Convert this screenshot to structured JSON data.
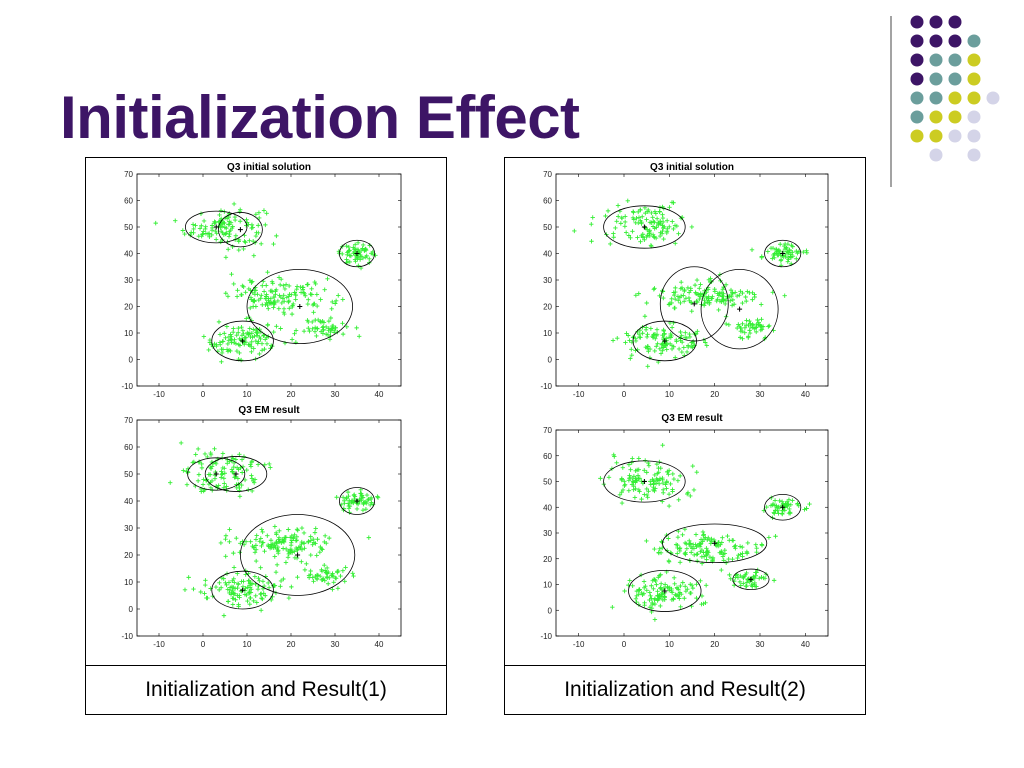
{
  "slide": {
    "title": "Initialization Effect"
  },
  "colors": {
    "title": "#3d1566",
    "points": "#33ee33",
    "deco_purple": "#3d1566",
    "deco_teal": "#6b9e9c",
    "deco_yellow": "#cccc22",
    "deco_lavender": "#d4d4e8"
  },
  "deco_dots": [
    [
      "purple",
      "purple",
      "purple",
      null,
      null
    ],
    [
      "purple",
      "purple",
      "purple",
      "teal",
      null
    ],
    [
      "purple",
      "teal",
      "teal",
      "yellow",
      null
    ],
    [
      "purple",
      "teal",
      "teal",
      "yellow",
      null
    ],
    [
      "teal",
      "teal",
      "yellow",
      "yellow",
      "lavender"
    ],
    [
      "teal",
      "yellow",
      "yellow",
      "lavender",
      null
    ],
    [
      "yellow",
      "yellow",
      "lavender",
      "lavender",
      null
    ],
    [
      null,
      "lavender",
      null,
      "lavender",
      null
    ]
  ],
  "panels": [
    {
      "caption": "Initialization and Result(1)",
      "top_plot_title": "Q3 initial solution",
      "bottom_plot_title": "Q3 EM result"
    },
    {
      "caption": "Initialization and Result(2)",
      "top_plot_title": "Q3 initial solution",
      "bottom_plot_title": "Q3 EM result"
    }
  ],
  "chart_data": [
    {
      "panel": 0,
      "plot": "top",
      "type": "scatter",
      "title": "Q3 initial solution",
      "xlim": [
        -15,
        45
      ],
      "ylim": [
        -10,
        70
      ],
      "xticks": [
        -10,
        0,
        10,
        20,
        30,
        40
      ],
      "yticks": [
        -10,
        0,
        10,
        20,
        30,
        40,
        50,
        60,
        70
      ],
      "clusters": [
        {
          "center": [
            5,
            50
          ],
          "spread": [
            4.5,
            4
          ],
          "n": 120
        },
        {
          "center": [
            35,
            40
          ],
          "spread": [
            2,
            1.8
          ],
          "n": 60
        },
        {
          "center": [
            18,
            24
          ],
          "spread": [
            6,
            3
          ],
          "n": 140
        },
        {
          "center": [
            28,
            12
          ],
          "spread": [
            2.5,
            1.8
          ],
          "n": 50
        },
        {
          "center": [
            9,
            7
          ],
          "spread": [
            4.5,
            3.5
          ],
          "n": 120
        }
      ],
      "components": [
        {
          "mean": [
            3,
            50
          ],
          "r": [
            7,
            6
          ]
        },
        {
          "mean": [
            8.5,
            49
          ],
          "r": [
            5,
            6.5
          ]
        },
        {
          "mean": [
            35,
            40
          ],
          "r": [
            4,
            5
          ]
        },
        {
          "mean": [
            22,
            20
          ],
          "r": [
            12,
            14
          ]
        },
        {
          "mean": [
            9,
            7
          ],
          "r": [
            7,
            7.5
          ]
        }
      ]
    },
    {
      "panel": 0,
      "plot": "bottom",
      "type": "scatter",
      "title": "Q3 EM result",
      "xlim": [
        -15,
        45
      ],
      "ylim": [
        -10,
        70
      ],
      "xticks": [
        -10,
        0,
        10,
        20,
        30,
        40
      ],
      "yticks": [
        -10,
        0,
        10,
        20,
        30,
        40,
        50,
        60,
        70
      ],
      "clusters": [
        {
          "center": [
            5,
            50
          ],
          "spread": [
            4.5,
            4
          ],
          "n": 120
        },
        {
          "center": [
            35,
            40
          ],
          "spread": [
            2,
            1.8
          ],
          "n": 60
        },
        {
          "center": [
            18,
            24
          ],
          "spread": [
            6,
            3
          ],
          "n": 140
        },
        {
          "center": [
            28,
            12
          ],
          "spread": [
            2.5,
            1.8
          ],
          "n": 50
        },
        {
          "center": [
            9,
            7
          ],
          "spread": [
            4.5,
            3.5
          ],
          "n": 120
        }
      ],
      "components": [
        {
          "mean": [
            3,
            50
          ],
          "r": [
            6.5,
            6
          ]
        },
        {
          "mean": [
            7.5,
            50
          ],
          "r": [
            7,
            6.5
          ]
        },
        {
          "mean": [
            35,
            40
          ],
          "r": [
            4,
            5
          ]
        },
        {
          "mean": [
            21.5,
            20
          ],
          "r": [
            13,
            15
          ]
        },
        {
          "mean": [
            9,
            7
          ],
          "r": [
            7,
            7
          ]
        }
      ]
    },
    {
      "panel": 1,
      "plot": "top",
      "type": "scatter",
      "title": "Q3 initial solution",
      "xlim": [
        -15,
        45
      ],
      "ylim": [
        -10,
        70
      ],
      "xticks": [
        -10,
        0,
        10,
        20,
        30,
        40
      ],
      "yticks": [
        -10,
        0,
        10,
        20,
        30,
        40,
        50,
        60,
        70
      ],
      "clusters": [
        {
          "center": [
            5,
            50
          ],
          "spread": [
            4.5,
            4
          ],
          "n": 120
        },
        {
          "center": [
            35,
            40
          ],
          "spread": [
            2,
            1.8
          ],
          "n": 60
        },
        {
          "center": [
            18,
            24
          ],
          "spread": [
            6,
            3
          ],
          "n": 140
        },
        {
          "center": [
            28,
            12
          ],
          "spread": [
            2.5,
            1.8
          ],
          "n": 50
        },
        {
          "center": [
            9,
            7
          ],
          "spread": [
            4.5,
            3.5
          ],
          "n": 120
        }
      ],
      "components": [
        {
          "mean": [
            4.5,
            50
          ],
          "r": [
            9,
            8
          ]
        },
        {
          "mean": [
            35,
            40
          ],
          "r": [
            4,
            5
          ]
        },
        {
          "mean": [
            15.5,
            21
          ],
          "r": [
            7.5,
            14
          ]
        },
        {
          "mean": [
            25.5,
            19
          ],
          "r": [
            8.5,
            15
          ]
        },
        {
          "mean": [
            9,
            7
          ],
          "r": [
            7,
            7.5
          ]
        }
      ]
    },
    {
      "panel": 1,
      "plot": "bottom",
      "type": "scatter",
      "title": "Q3 EM result",
      "xlim": [
        -15,
        45
      ],
      "ylim": [
        -10,
        70
      ],
      "xticks": [
        -10,
        0,
        10,
        20,
        30,
        40
      ],
      "yticks": [
        -10,
        0,
        10,
        20,
        30,
        40,
        50,
        60,
        70
      ],
      "clusters": [
        {
          "center": [
            5,
            50
          ],
          "spread": [
            4.5,
            4
          ],
          "n": 120
        },
        {
          "center": [
            35,
            40
          ],
          "spread": [
            2,
            1.8
          ],
          "n": 60
        },
        {
          "center": [
            18,
            24
          ],
          "spread": [
            6,
            3
          ],
          "n": 140
        },
        {
          "center": [
            28,
            12
          ],
          "spread": [
            2.5,
            1.8
          ],
          "n": 50
        },
        {
          "center": [
            9,
            7
          ],
          "spread": [
            4.5,
            3.5
          ],
          "n": 120
        }
      ],
      "components": [
        {
          "mean": [
            4.5,
            50
          ],
          "r": [
            9,
            8
          ]
        },
        {
          "mean": [
            35,
            40
          ],
          "r": [
            4,
            5
          ]
        },
        {
          "mean": [
            20,
            26
          ],
          "r": [
            11.5,
            7.5
          ]
        },
        {
          "mean": [
            28,
            12
          ],
          "r": [
            4,
            4
          ]
        },
        {
          "mean": [
            9,
            7.5
          ],
          "r": [
            8,
            8
          ]
        }
      ]
    }
  ]
}
